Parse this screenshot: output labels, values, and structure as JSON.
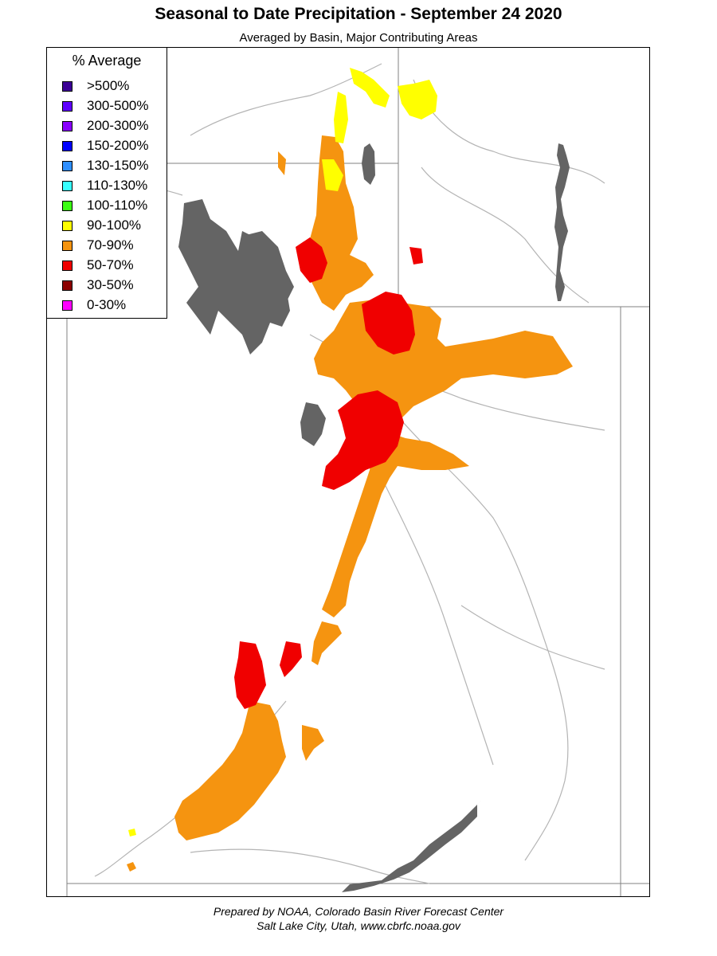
{
  "header": {
    "title": "Seasonal to Date Precipitation - September 24 2020",
    "subtitle": "Averaged by Basin, Major Contributing Areas"
  },
  "legend": {
    "title": "% Average",
    "items": [
      {
        "label": ">500%",
        "color": "#3c0096"
      },
      {
        "label": "300-500%",
        "color": "#6000ff"
      },
      {
        "label": "200-300%",
        "color": "#8a00ff"
      },
      {
        "label": "150-200%",
        "color": "#0000ff"
      },
      {
        "label": "130-150%",
        "color": "#2f8fff"
      },
      {
        "label": "110-130%",
        "color": "#38ffff"
      },
      {
        "label": "100-110%",
        "color": "#3cff14"
      },
      {
        "label": "90-100%",
        "color": "#ffff00"
      },
      {
        "label": "70-90%",
        "color": "#f59410"
      },
      {
        "label": "50-70%",
        "color": "#f00000"
      },
      {
        "label": "30-50%",
        "color": "#8c0000"
      },
      {
        "label": "0-30%",
        "color": "#ff00ff"
      }
    ]
  },
  "map": {
    "lake_color": "#646464",
    "river_color": "#b4b4b4",
    "border_color": "#808080"
  },
  "footer": {
    "line1": "Prepared by NOAA, Colorado Basin River Forecast Center",
    "line2": "Salt Lake City, Utah, www.cbrfc.noaa.gov"
  }
}
